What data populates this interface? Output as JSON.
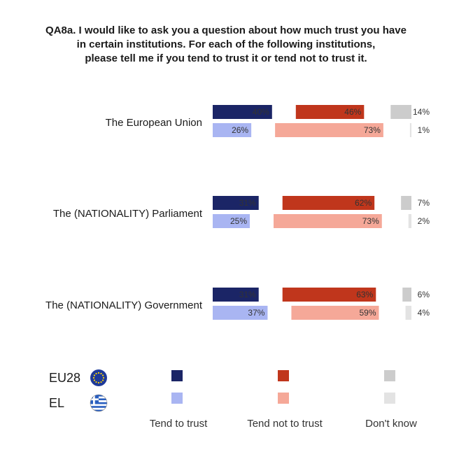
{
  "title_lines": [
    "QA8a. I would like to ask you a question about how much trust you have",
    "in certain institutions. For each of the following institutions,",
    "please tell me if you tend to trust it or tend not to trust it."
  ],
  "colors": {
    "eu_trust": "#1b2566",
    "eu_not": "#c0361c",
    "eu_dk": "#cccccc",
    "el_trust": "#a9b5f2",
    "el_not": "#f5a898",
    "el_dk": "#e3e3e3",
    "flag_eu": "#1e3a9a",
    "flag_el": "#2a5fbf"
  },
  "chart_data": {
    "type": "bar",
    "orientation": "horizontal",
    "stacked": "segmented",
    "title": "QA8a. I would like to ask you a question about how much trust you have in certain institutions. For each of the following institutions, please tell me if you tend to trust it or tend not to trust it.",
    "categories": [
      "The European Union",
      "The (NATIONALITY) Parliament",
      "The (NATIONALITY) Government"
    ],
    "groups": [
      "EU28",
      "EL"
    ],
    "series": [
      {
        "name": "Tend to trust",
        "EU28": [
          40,
          31,
          31
        ],
        "EL": [
          26,
          25,
          37
        ]
      },
      {
        "name": "Tend not to trust",
        "EU28": [
          46,
          62,
          63
        ],
        "EL": [
          73,
          73,
          59
        ]
      },
      {
        "name": "Don't know",
        "EU28": [
          14,
          7,
          6
        ],
        "EL": [
          1,
          2,
          4
        ]
      }
    ],
    "value_suffix": "%",
    "legend_placement": "bottom"
  },
  "legend": {
    "groups": [
      {
        "code": "EU28",
        "flag": "eu-flag-icon"
      },
      {
        "code": "EL",
        "flag": "greece-flag-icon"
      }
    ],
    "labels": [
      "Tend to trust",
      "Tend not to trust",
      "Don't know"
    ]
  }
}
